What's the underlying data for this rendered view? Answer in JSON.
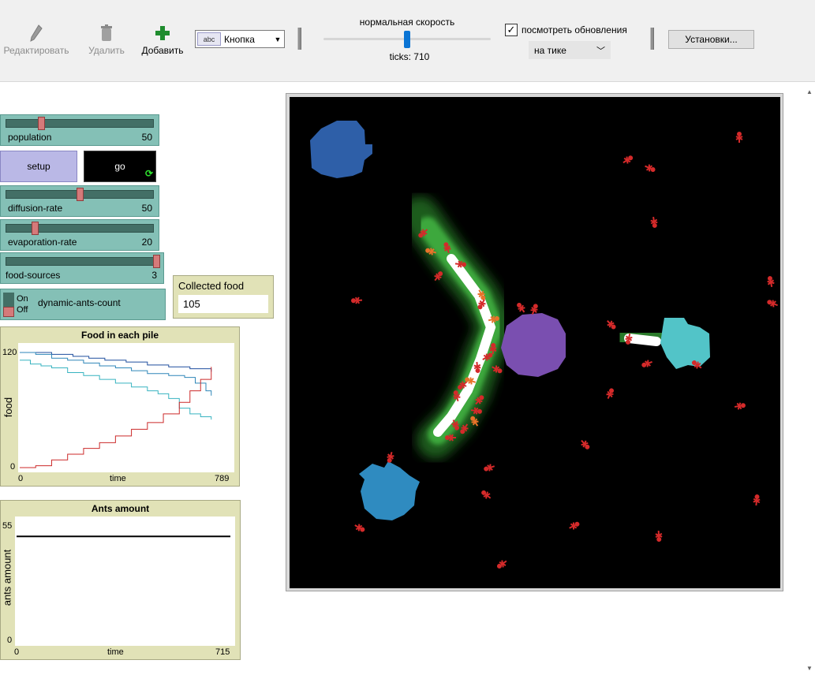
{
  "toolbar": {
    "edit_label": "Редактировать",
    "delete_label": "Удалить",
    "add_label": "Добавить",
    "widget_type": "Кнопка",
    "widget_type_icon": "abc",
    "speed_label": "нормальная скорость",
    "ticks_label": "ticks: 710",
    "speed_level": 0.5,
    "view_updates_label": "посмотреть обновления",
    "view_updates_checked": true,
    "update_mode": "на тике",
    "settings_label": "Установки..."
  },
  "widgets": {
    "population": {
      "name": "population",
      "value": "50",
      "fraction": 0.27
    },
    "setup": {
      "label": "setup"
    },
    "go": {
      "label": "go"
    },
    "diffusion_rate": {
      "name": "diffusion-rate",
      "value": "50",
      "fraction": 0.5
    },
    "evaporation_rate": {
      "name": "evaporation-rate",
      "value": "20",
      "fraction": 0.2
    },
    "food_sources": {
      "name": "food-sources",
      "value": "3",
      "fraction": 1.0
    },
    "switch": {
      "on": "On",
      "off": "Off",
      "name": "dynamic-ants-count",
      "state": "off"
    },
    "monitor": {
      "name": "Collected food",
      "value": "105"
    }
  },
  "plots": {
    "food": {
      "title": "Food in each pile",
      "ylabel": "food",
      "xlabel": "time",
      "ymin": "0",
      "ymax": "120",
      "xmin": "0",
      "xmax": "789"
    },
    "ants": {
      "title": "Ants amount",
      "ylabel": "ants amount",
      "xlabel": "time",
      "ymin": "0",
      "ymax": "55",
      "xmin": "0",
      "xmax": "715"
    }
  },
  "chart_data": [
    {
      "type": "line",
      "title": "Food in each pile",
      "xlabel": "time",
      "ylabel": "food",
      "xlim": [
        0,
        789
      ],
      "ylim": [
        0,
        120
      ],
      "series": [
        {
          "color": "#1f4e9e",
          "x": [
            0,
            60,
            120,
            200,
            260,
            320,
            400,
            480,
            560,
            640,
            720
          ],
          "values": [
            120,
            120,
            118,
            116,
            114,
            112,
            110,
            107,
            105,
            103,
            100
          ]
        },
        {
          "color": "#2e86b8",
          "x": [
            0,
            60,
            120,
            180,
            240,
            300,
            360,
            420,
            480,
            560,
            620,
            660,
            700,
            720
          ],
          "values": [
            120,
            118,
            114,
            112,
            109,
            106,
            104,
            101,
            98,
            96,
            94,
            88,
            80,
            75
          ]
        },
        {
          "color": "#37b3c0",
          "x": [
            0,
            40,
            80,
            120,
            180,
            240,
            300,
            360,
            420,
            480,
            520,
            560,
            600,
            640,
            680,
            720
          ],
          "values": [
            112,
            108,
            106,
            104,
            99,
            96,
            92,
            88,
            84,
            80,
            77,
            72,
            62,
            56,
            53,
            50
          ]
        },
        {
          "color": "#cc2a2a",
          "x": [
            0,
            60,
            120,
            180,
            240,
            300,
            360,
            420,
            480,
            540,
            600,
            640,
            680,
            720
          ],
          "values": [
            0,
            2,
            8,
            14,
            20,
            26,
            33,
            40,
            47,
            56,
            68,
            80,
            92,
            105
          ]
        }
      ]
    },
    {
      "type": "line",
      "title": "Ants amount",
      "xlabel": "time",
      "ylabel": "ants amount",
      "xlim": [
        0,
        715
      ],
      "ylim": [
        0,
        55
      ],
      "series": [
        {
          "color": "#000000",
          "x": [
            0,
            715
          ],
          "values": [
            50,
            50
          ]
        }
      ]
    }
  ],
  "world": {
    "nest_color": "#7a4fb0",
    "food_colors": [
      "#2e5fa8",
      "#2f8bc0",
      "#52c4c8"
    ],
    "pheromone_color": "#3da83d",
    "ant_color": "#d42a2a",
    "ant_carrying_color": "#e8732a"
  }
}
